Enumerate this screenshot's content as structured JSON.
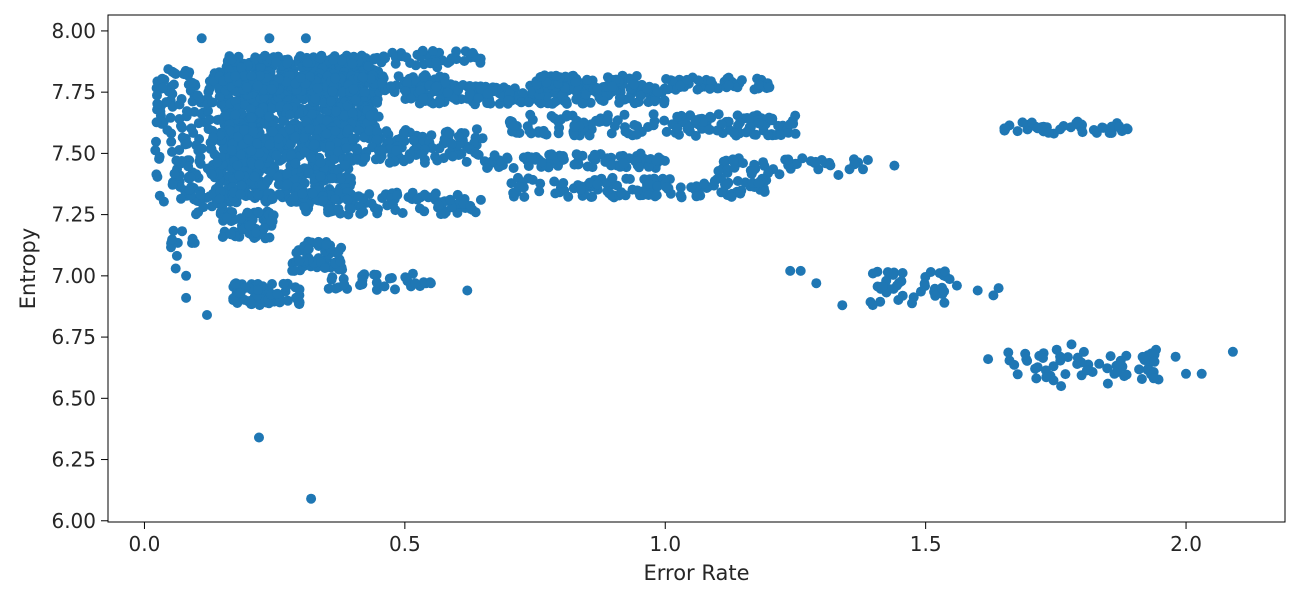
{
  "chart_data": {
    "type": "scatter",
    "title": "",
    "xlabel": "Error Rate",
    "ylabel": "Entropy",
    "xlim": [
      -0.07,
      2.19
    ],
    "ylim": [
      5.995,
      8.065
    ],
    "xticks": [
      0.0,
      0.5,
      1.0,
      1.5,
      2.0
    ],
    "xtick_labels": [
      "0.0",
      "0.5",
      "1.0",
      "1.5",
      "2.0"
    ],
    "yticks": [
      6.0,
      6.25,
      6.5,
      6.75,
      7.0,
      7.25,
      7.5,
      7.75,
      8.0
    ],
    "ytick_labels": [
      "6.00",
      "6.25",
      "6.50",
      "6.75",
      "7.00",
      "7.25",
      "7.50",
      "7.75",
      "8.00"
    ],
    "grid": false,
    "legend": "none",
    "marker_color": "#1f77b4",
    "clusters": [
      {
        "x": [
          0.15,
          0.45
        ],
        "y": [
          7.6,
          7.9
        ],
        "n": 700
      },
      {
        "x": [
          0.15,
          0.4
        ],
        "y": [
          7.3,
          7.6
        ],
        "n": 500
      },
      {
        "x": [
          0.02,
          0.15
        ],
        "y": [
          7.25,
          7.85
        ],
        "n": 180
      },
      {
        "x": [
          0.15,
          0.6
        ],
        "y": [
          7.75,
          7.82
        ],
        "n": 220
      },
      {
        "x": [
          0.5,
          1.0
        ],
        "y": [
          7.7,
          7.78
        ],
        "n": 200
      },
      {
        "x": [
          0.45,
          0.65
        ],
        "y": [
          7.85,
          7.92
        ],
        "n": 40
      },
      {
        "x": [
          0.75,
          0.95
        ],
        "y": [
          7.76,
          7.82
        ],
        "n": 70
      },
      {
        "x": [
          1.0,
          1.2
        ],
        "y": [
          7.76,
          7.81
        ],
        "n": 50
      },
      {
        "x": [
          0.7,
          1.25
        ],
        "y": [
          7.57,
          7.66
        ],
        "n": 160
      },
      {
        "x": [
          0.4,
          0.65
        ],
        "y": [
          7.52,
          7.6
        ],
        "n": 70
      },
      {
        "x": [
          0.4,
          0.65
        ],
        "y": [
          7.46,
          7.52
        ],
        "n": 50
      },
      {
        "x": [
          0.65,
          1.0
        ],
        "y": [
          7.44,
          7.5
        ],
        "n": 90
      },
      {
        "x": [
          1.1,
          1.4
        ],
        "y": [
          7.41,
          7.48
        ],
        "n": 50
      },
      {
        "x": [
          0.7,
          1.2
        ],
        "y": [
          7.32,
          7.4
        ],
        "n": 120
      },
      {
        "x": [
          0.3,
          0.65
        ],
        "y": [
          7.25,
          7.34
        ],
        "n": 90
      },
      {
        "x": [
          0.15,
          0.25
        ],
        "y": [
          7.15,
          7.27
        ],
        "n": 60
      },
      {
        "x": [
          0.28,
          0.38
        ],
        "y": [
          7.02,
          7.14
        ],
        "n": 60
      },
      {
        "x": [
          0.17,
          0.3
        ],
        "y": [
          6.88,
          6.97
        ],
        "n": 70
      },
      {
        "x": [
          0.35,
          0.55
        ],
        "y": [
          6.94,
          7.01
        ],
        "n": 30
      },
      {
        "x": [
          1.65,
          1.9
        ],
        "y": [
          7.58,
          7.63
        ],
        "n": 45
      },
      {
        "x": [
          1.38,
          1.55
        ],
        "y": [
          6.88,
          7.02
        ],
        "n": 40
      },
      {
        "x": [
          1.65,
          1.95
        ],
        "y": [
          6.57,
          6.7
        ],
        "n": 60
      },
      {
        "x": [
          0.05,
          0.1
        ],
        "y": [
          7.08,
          7.2
        ],
        "n": 10
      }
    ],
    "points": [
      {
        "x": 0.22,
        "y": 6.34
      },
      {
        "x": 0.32,
        "y": 6.09
      },
      {
        "x": 0.12,
        "y": 6.84
      },
      {
        "x": 0.08,
        "y": 6.91
      },
      {
        "x": 0.06,
        "y": 7.03
      },
      {
        "x": 0.08,
        "y": 7.0
      },
      {
        "x": 0.11,
        "y": 7.97
      },
      {
        "x": 0.31,
        "y": 7.97
      },
      {
        "x": 0.24,
        "y": 7.97
      },
      {
        "x": 0.62,
        "y": 6.94
      },
      {
        "x": 0.52,
        "y": 6.97
      },
      {
        "x": 0.55,
        "y": 6.97
      },
      {
        "x": 1.26,
        "y": 7.02
      },
      {
        "x": 1.24,
        "y": 7.02
      },
      {
        "x": 1.29,
        "y": 6.97
      },
      {
        "x": 1.34,
        "y": 6.88
      },
      {
        "x": 1.56,
        "y": 6.96
      },
      {
        "x": 1.6,
        "y": 6.94
      },
      {
        "x": 1.64,
        "y": 6.95
      },
      {
        "x": 1.63,
        "y": 6.92
      },
      {
        "x": 1.44,
        "y": 7.45
      },
      {
        "x": 1.62,
        "y": 6.66
      },
      {
        "x": 2.09,
        "y": 6.69
      },
      {
        "x": 2.03,
        "y": 6.6
      },
      {
        "x": 2.0,
        "y": 6.6
      },
      {
        "x": 1.98,
        "y": 6.67
      },
      {
        "x": 1.76,
        "y": 6.55
      },
      {
        "x": 1.85,
        "y": 6.56
      },
      {
        "x": 1.78,
        "y": 6.72
      },
      {
        "x": 1.25,
        "y": 7.58
      },
      {
        "x": 1.24,
        "y": 7.62
      },
      {
        "x": 1.18,
        "y": 7.78
      },
      {
        "x": 1.2,
        "y": 7.77
      }
    ]
  }
}
